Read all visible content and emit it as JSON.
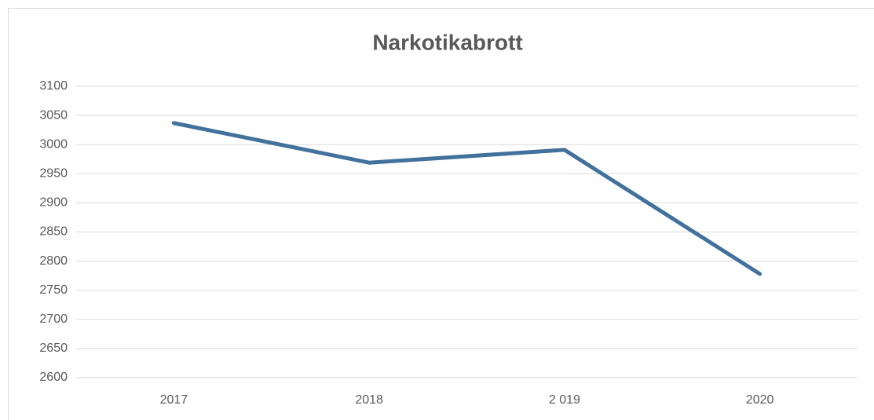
{
  "chart_data": {
    "type": "line",
    "title": "Narkotikabrott",
    "categories": [
      "2017",
      "2018",
      "2 019",
      "2020"
    ],
    "values": [
      3037,
      2969,
      2991,
      2778
    ],
    "color": "#41719c",
    "ylim": [
      2600,
      3100
    ],
    "yticks": [
      2600,
      2650,
      2700,
      2750,
      2800,
      2850,
      2900,
      2950,
      3000,
      3050,
      3100
    ],
    "grid": true
  }
}
